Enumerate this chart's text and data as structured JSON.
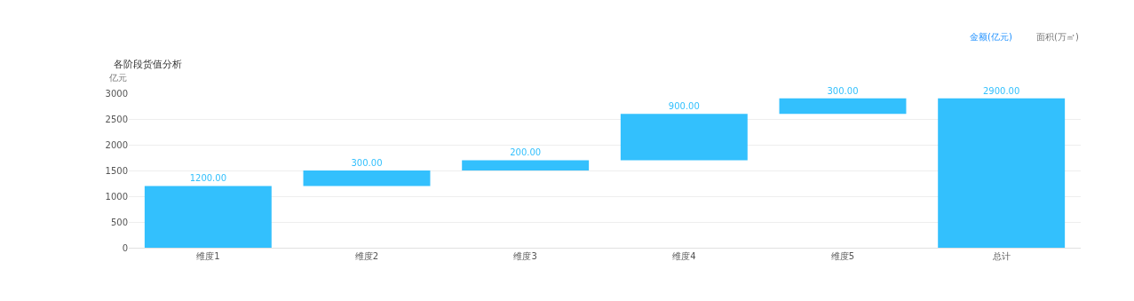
{
  "chart_data": {
    "type": "bar",
    "title": "各阶段货值分析",
    "ylabel": "亿元",
    "categories": [
      "维度1",
      "维度2",
      "维度3",
      "维度4",
      "维度5",
      "总计"
    ],
    "values": [
      1200,
      300,
      200,
      900,
      300,
      2900
    ],
    "base": [
      0,
      1200,
      1500,
      1700,
      2600,
      0
    ],
    "value_labels": [
      "1200.00",
      "300.00",
      "200.00",
      "900.00",
      "300.00",
      "2900.00"
    ],
    "color": "#33c0fd",
    "ylim": [
      0,
      3000
    ],
    "yticks": [
      0,
      500,
      1000,
      1500,
      2000,
      2500,
      3000
    ],
    "grid": "y",
    "annotations": [
      "金额(亿元)",
      "面积(万㎡)"
    ]
  }
}
